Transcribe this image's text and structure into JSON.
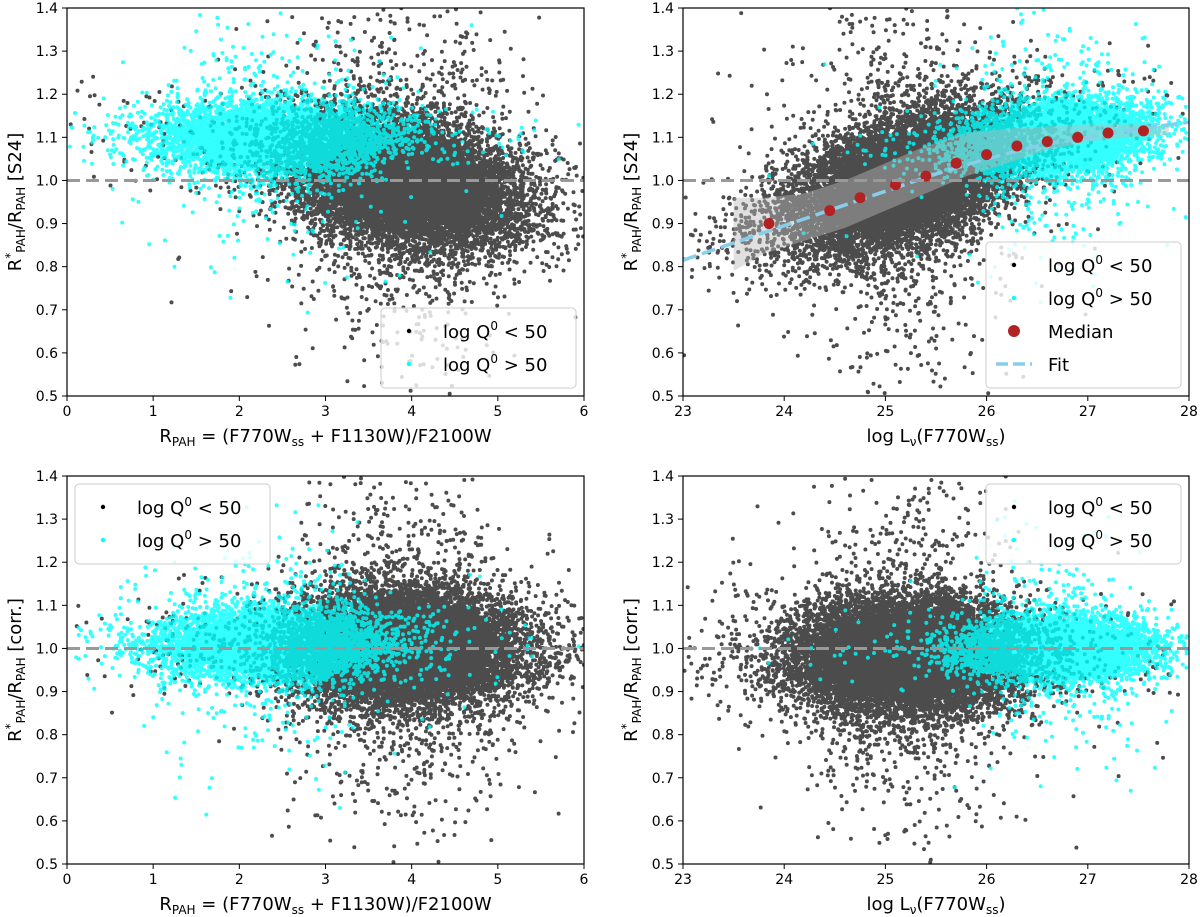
{
  "colors": {
    "low_q": "#000000",
    "high_q": "#00ffff",
    "median": "#b22222",
    "fit": "#87ceeb",
    "reference": "#999999",
    "band": "#bbbbbb"
  },
  "chart_data": [
    {
      "id": "top-left",
      "type": "scatter",
      "xlabel": "R_PAH = (F770W_ss + F1130W)/F2100W",
      "ylabel": "R*_PAH/R_PAH [S24]",
      "xlim": [
        0,
        6
      ],
      "ylim": [
        0.5,
        1.4
      ],
      "xticks": [
        "0",
        "1",
        "2",
        "3",
        "4",
        "5",
        "6"
      ],
      "yticks": [
        "0.5",
        "0.6",
        "0.7",
        "0.8",
        "0.9",
        "1.0",
        "1.1",
        "1.2",
        "1.3",
        "1.4"
      ],
      "reference_line_y": 1.0,
      "legend_position": "lower-right",
      "series": [
        {
          "name": "log Q^0 < 50",
          "color": "black",
          "n_points": 14000,
          "cloud": {
            "x_center": 3.9,
            "x_spread": 0.65,
            "y_center": 1.0,
            "y_spread": 0.07,
            "y_slope_per_x": -0.035
          }
        },
        {
          "name": "log Q^0 > 50",
          "color": "cyan",
          "n_points": 6000,
          "cloud": {
            "x_center": 2.4,
            "x_spread": 0.65,
            "y_center": 1.1,
            "y_spread": 0.04,
            "y_slope_per_x": 0.0
          }
        }
      ]
    },
    {
      "id": "top-right",
      "type": "scatter",
      "xlabel": "log L_ν(F770W_ss)",
      "ylabel": "R*_PAH/R_PAH [S24]",
      "xlim": [
        23,
        28
      ],
      "ylim": [
        0.5,
        1.4
      ],
      "xticks": [
        "23",
        "24",
        "25",
        "26",
        "27",
        "28"
      ],
      "yticks": [
        "0.5",
        "0.6",
        "0.7",
        "0.8",
        "0.9",
        "1.0",
        "1.1",
        "1.2",
        "1.3",
        "1.4"
      ],
      "reference_line_y": 1.0,
      "legend_position": "lower-right",
      "series": [
        {
          "name": "log Q^0 < 50",
          "color": "black",
          "n_points": 14000,
          "cloud": {
            "x_center": 25.2,
            "x_spread": 0.55,
            "y_center": 1.0,
            "y_spread": 0.07,
            "y_slope_per_x": 0.07
          }
        },
        {
          "name": "log Q^0 > 50",
          "color": "cyan",
          "n_points": 6000,
          "cloud": {
            "x_center": 26.7,
            "x_spread": 0.45,
            "y_center": 1.1,
            "y_spread": 0.04,
            "y_slope_per_x": 0.02
          }
        }
      ],
      "median": {
        "name": "Median",
        "x": [
          23.85,
          24.45,
          24.75,
          25.1,
          25.4,
          25.7,
          26.0,
          26.3,
          26.6,
          26.9,
          27.2,
          27.55
        ],
        "y": [
          0.9,
          0.93,
          0.96,
          0.99,
          1.01,
          1.04,
          1.06,
          1.08,
          1.09,
          1.1,
          1.11,
          1.115
        ]
      },
      "band": {
        "x": [
          23.5,
          23.8,
          24.2,
          24.6,
          25.0,
          25.4,
          25.8,
          26.2,
          26.6,
          27.0,
          27.4,
          27.8
        ],
        "lower": [
          0.79,
          0.83,
          0.86,
          0.89,
          0.93,
          0.97,
          1.01,
          1.04,
          1.07,
          1.09,
          1.1,
          1.105
        ],
        "upper": [
          0.96,
          0.96,
          0.97,
          1.0,
          1.04,
          1.08,
          1.11,
          1.12,
          1.125,
          1.13,
          1.13,
          1.13
        ]
      },
      "fit": {
        "name": "Fit",
        "x": [
          23.0,
          23.5,
          24.0,
          24.5,
          25.0,
          25.5,
          26.0,
          26.5,
          27.0,
          27.5,
          28.0
        ],
        "y": [
          0.815,
          0.855,
          0.895,
          0.935,
          0.975,
          1.015,
          1.05,
          1.08,
          1.1,
          1.12,
          1.135
        ]
      }
    },
    {
      "id": "bottom-left",
      "type": "scatter",
      "xlabel": "R_PAH = (F770W_ss + F1130W)/F2100W",
      "ylabel": "R*_PAH/R_PAH [corr.]",
      "xlim": [
        0,
        6
      ],
      "ylim": [
        0.5,
        1.4
      ],
      "xticks": [
        "0",
        "1",
        "2",
        "3",
        "4",
        "5",
        "6"
      ],
      "yticks": [
        "0.5",
        "0.6",
        "0.7",
        "0.8",
        "0.9",
        "1.0",
        "1.1",
        "1.2",
        "1.3",
        "1.4"
      ],
      "reference_line_y": 1.0,
      "legend_position": "upper-left",
      "series": [
        {
          "name": "log Q^0 < 50",
          "color": "black",
          "n_points": 14000,
          "cloud": {
            "x_center": 3.9,
            "x_spread": 0.65,
            "y_center": 1.0,
            "y_spread": 0.065,
            "y_slope_per_x": 0.0
          }
        },
        {
          "name": "log Q^0 > 50",
          "color": "cyan",
          "n_points": 6000,
          "cloud": {
            "x_center": 2.4,
            "x_spread": 0.65,
            "y_center": 1.01,
            "y_spread": 0.04,
            "y_slope_per_x": 0.0
          }
        }
      ]
    },
    {
      "id": "bottom-right",
      "type": "scatter",
      "xlabel": "log L_ν(F770W_ss)",
      "ylabel": "R*_PAH/R_PAH [corr.]",
      "xlim": [
        23,
        28
      ],
      "ylim": [
        0.5,
        1.4
      ],
      "xticks": [
        "23",
        "24",
        "25",
        "26",
        "27",
        "28"
      ],
      "yticks": [
        "0.5",
        "0.6",
        "0.7",
        "0.8",
        "0.9",
        "1.0",
        "1.1",
        "1.2",
        "1.3",
        "1.4"
      ],
      "reference_line_y": 1.0,
      "legend_position": "upper-right",
      "series": [
        {
          "name": "log Q^0 < 50",
          "color": "black",
          "n_points": 14000,
          "cloud": {
            "x_center": 25.2,
            "x_spread": 0.55,
            "y_center": 0.98,
            "y_spread": 0.065,
            "y_slope_per_x": 0.0
          }
        },
        {
          "name": "log Q^0 > 50",
          "color": "cyan",
          "n_points": 6000,
          "cloud": {
            "x_center": 26.7,
            "x_spread": 0.45,
            "y_center": 1.0,
            "y_spread": 0.035,
            "y_slope_per_x": 0.0
          }
        }
      ]
    }
  ]
}
